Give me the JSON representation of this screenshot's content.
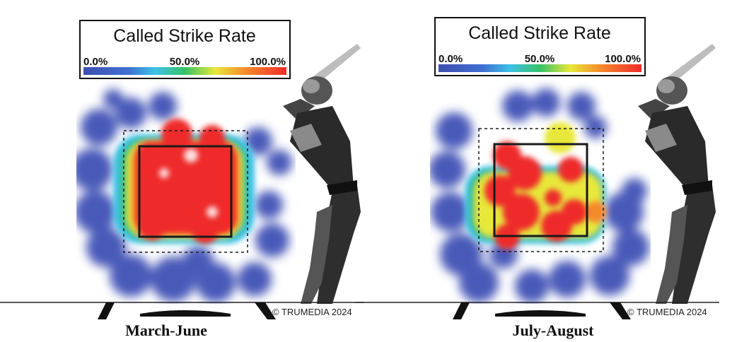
{
  "charts": [
    {
      "caption": "March-June",
      "copyright": "© TRUMEDIA 2024",
      "legend": {
        "title": "Called Strike Rate",
        "ticks": [
          "0.0%",
          "50.0%",
          "100.0%"
        ]
      },
      "colors": {
        "low": "#3f51b5",
        "mid": "#36c266",
        "high": "#ee2b2b"
      }
    },
    {
      "caption": "July-August",
      "copyright": "© TRUMEDIA 2024",
      "legend": {
        "title": "Called Strike Rate",
        "ticks": [
          "0.0%",
          "50.0%",
          "100.0%"
        ]
      },
      "colors": {
        "low": "#3f51b5",
        "mid": "#36c266",
        "high": "#ee2b2b"
      }
    }
  ],
  "chart_data": [
    {
      "type": "heatmap",
      "title": "Called Strike Rate",
      "period": "March-June",
      "scale": {
        "min": 0.0,
        "max": 100.0,
        "unit": "%"
      },
      "zones": [
        {
          "zone": "inside strike zone",
          "called_strike_rate": 95
        },
        {
          "zone": "zone edge",
          "called_strike_rate": 50
        },
        {
          "zone": "outside strike zone",
          "called_strike_rate": 5
        }
      ]
    },
    {
      "type": "heatmap",
      "title": "Called Strike Rate",
      "period": "July-August",
      "scale": {
        "min": 0.0,
        "max": 100.0,
        "unit": "%"
      },
      "zones": [
        {
          "zone": "inside strike zone",
          "called_strike_rate": 90
        },
        {
          "zone": "zone edge",
          "called_strike_rate": 45
        },
        {
          "zone": "outside strike zone",
          "called_strike_rate": 5
        }
      ]
    }
  ]
}
